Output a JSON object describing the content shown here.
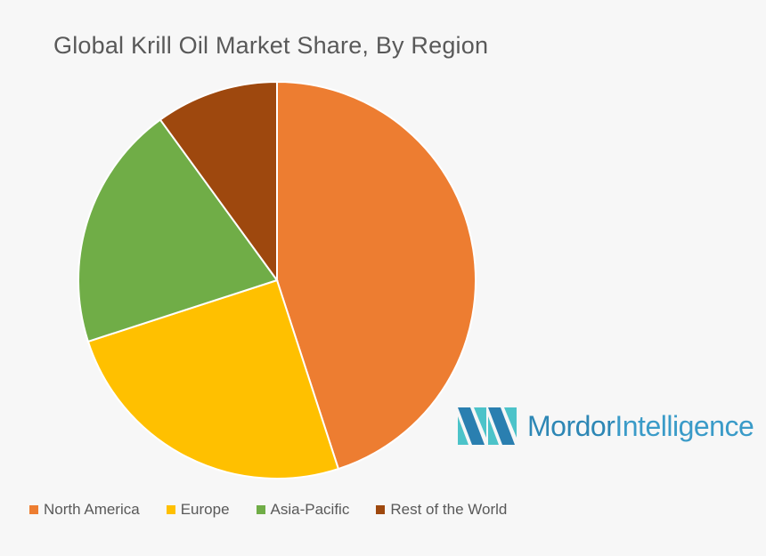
{
  "chart_data": {
    "type": "pie",
    "title": "Global Krill Oil Market Share, By Region",
    "categories": [
      "North America",
      "Europe",
      "Asia-Pacific",
      "Rest of the World"
    ],
    "values": [
      45,
      25,
      20,
      10
    ],
    "colors": [
      "#ed7d31",
      "#ffc000",
      "#70ad47",
      "#9e480e"
    ],
    "legend_position": "bottom",
    "start_angle": "top (12 o'clock), clockwise"
  },
  "logo": {
    "text": "Mordor Intelligence",
    "text_bold_part": "Mordor",
    "text_light_part": "Intelligence",
    "colors": [
      "#2a7fb0",
      "#4cc3c9"
    ]
  }
}
